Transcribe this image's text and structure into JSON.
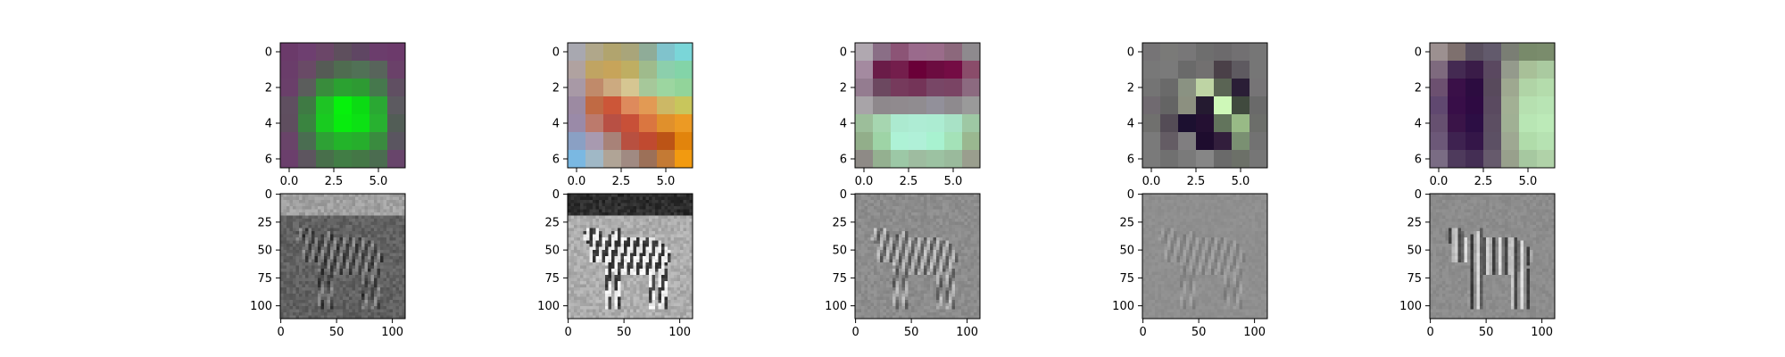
{
  "chart_data": {
    "type": "heatmap",
    "description_panels": "2x5 grid of image subplots (matplotlib imshow)",
    "filters": [
      {
        "xticks": [
          0.0,
          2.5,
          5.0
        ],
        "xtick_labels": [
          "0.0",
          "2.5",
          "5.0"
        ],
        "yticks": [
          0,
          2,
          4,
          6
        ],
        "ytick_labels": [
          "0",
          "2",
          "4",
          "6"
        ],
        "xlim": [
          -0.5,
          6.5
        ],
        "ylim": [
          6.5,
          -0.5
        ],
        "pixels": [
          [
            "#6b3a6a",
            "#6e3f70",
            "#6b4668",
            "#5e4f5d",
            "#5f4663",
            "#6b3d6c",
            "#6c3a6b"
          ],
          [
            "#6a3d6a",
            "#694a66",
            "#555b55",
            "#4f6c50",
            "#517156",
            "#58645b",
            "#6a4169"
          ],
          [
            "#6a3f6a",
            "#5b5d5c",
            "#398c3c",
            "#2ba131",
            "#2e9a33",
            "#46784d",
            "#604f62"
          ],
          [
            "#5f4f60",
            "#3f7a44",
            "#1ec424",
            "#06f10c",
            "#0bdb13",
            "#2aa833",
            "#5c5a60"
          ],
          [
            "#5f4e5f",
            "#3a8440",
            "#19cb20",
            "#08ec0e",
            "#0ce114",
            "#28b130",
            "#525d56"
          ],
          [
            "#694469",
            "#4a6d51",
            "#2ea135",
            "#23b42a",
            "#26ae2c",
            "#3a8b3f",
            "#5a5560"
          ],
          [
            "#6b3f6c",
            "#5d555f",
            "#486f4b",
            "#417d45",
            "#447746",
            "#4b6c50",
            "#68456b"
          ]
        ]
      },
      {
        "xticks": [
          0.0,
          2.5,
          5.0
        ],
        "xtick_labels": [
          "0.0",
          "2.5",
          "5.0"
        ],
        "yticks": [
          0,
          2,
          4,
          6
        ],
        "ytick_labels": [
          "0",
          "2",
          "4",
          "6"
        ],
        "xlim": [
          -0.5,
          6.5
        ],
        "ylim": [
          6.5,
          -0.5
        ],
        "pixels": [
          [
            "#a8a8b0",
            "#b0a78a",
            "#b1a46e",
            "#a9a57a",
            "#8fac98",
            "#80c3cc",
            "#7ad6d8"
          ],
          [
            "#b0a2a0",
            "#c0a462",
            "#c7a45a",
            "#bfae62",
            "#9fbb8c",
            "#8ccfac",
            "#83d4a8"
          ],
          [
            "#a899a6",
            "#c08a6a",
            "#ccaa80",
            "#d6c692",
            "#a6c89a",
            "#9cd6a0",
            "#92d49a"
          ],
          [
            "#9c8aa2",
            "#c06a44",
            "#cc5638",
            "#de8a5c",
            "#e29a54",
            "#ccb866",
            "#c8c65c"
          ],
          [
            "#9a8aa8",
            "#bc7a6c",
            "#b85044",
            "#c85038",
            "#da7640",
            "#e0902c",
            "#ec9a24"
          ],
          [
            "#8aa0c4",
            "#a89ab0",
            "#a88278",
            "#b85040",
            "#c04a30",
            "#bc5416",
            "#e2840c"
          ],
          [
            "#7ab8e2",
            "#a0b8c6",
            "#b0a496",
            "#a08a82",
            "#9c7058",
            "#c47a34",
            "#f29a10"
          ]
        ]
      },
      {
        "xticks": [
          0.0,
          2.5,
          5.0
        ],
        "xtick_labels": [
          "0.0",
          "2.5",
          "5.0"
        ],
        "yticks": [
          0,
          2,
          4,
          6
        ],
        "ytick_labels": [
          "0",
          "2",
          "4",
          "6"
        ],
        "xlim": [
          -0.5,
          6.5
        ],
        "ylim": [
          6.5,
          -0.5
        ],
        "pixels": [
          [
            "#b0a8b0",
            "#8a6e86",
            "#8c5476",
            "#9a6a8c",
            "#9a6c8a",
            "#8c687c",
            "#8e8a8e"
          ],
          [
            "#a48aa0",
            "#6a1c48",
            "#741e4c",
            "#6a0038",
            "#6c0c40",
            "#740c44",
            "#8a4c6a"
          ],
          [
            "#947c90",
            "#6c4860",
            "#763a5c",
            "#743458",
            "#784666",
            "#7a4464",
            "#8c6a80"
          ],
          [
            "#a8a4a8",
            "#8e888c",
            "#908a8e",
            "#908c90",
            "#92909a",
            "#8e8a8e",
            "#9a9a9a"
          ],
          [
            "#9cbe9a",
            "#a6d6b0",
            "#acead0",
            "#aeecd4",
            "#acecd2",
            "#a8e2c6",
            "#9ec8a4"
          ],
          [
            "#92ae8a",
            "#9ed4a6",
            "#aef2d6",
            "#b0f0d8",
            "#a8f2d0",
            "#a4e2b8",
            "#9ab890"
          ],
          [
            "#8e8a86",
            "#94b090",
            "#9cc8a6",
            "#9ebca0",
            "#9cc2a2",
            "#9aba9c",
            "#9a9e8e"
          ]
        ]
      },
      {
        "xticks": [
          0.0,
          2.5,
          5.0
        ],
        "xtick_labels": [
          "0.0",
          "2.5",
          "5.0"
        ],
        "yticks": [
          0,
          2,
          4,
          6
        ],
        "ytick_labels": [
          "0",
          "2",
          "4",
          "6"
        ],
        "xlim": [
          -0.5,
          6.5
        ],
        "ylim": [
          6.5,
          -0.5
        ],
        "pixels": [
          [
            "#767476",
            "#7a7a78",
            "#787778",
            "#6e6e6e",
            "#6c6a6c",
            "#727072",
            "#767676"
          ],
          [
            "#787878",
            "#7a7a7a",
            "#6a6a6a",
            "#727070",
            "#4a4048",
            "#5e5a60",
            "#767676"
          ],
          [
            "#747474",
            "#6a6a6a",
            "#8a9282",
            "#bed4a4",
            "#5a6454",
            "#2a1e36",
            "#767476"
          ],
          [
            "#706a70",
            "#646464",
            "#8c9080",
            "#241a30",
            "#cef8b8",
            "#404a3e",
            "#6a6a6a"
          ],
          [
            "#70706e",
            "#544c56",
            "#1c1030",
            "#241032",
            "#62745c",
            "#98ba86",
            "#6c6e6a"
          ],
          [
            "#7a7a7a",
            "#645c64",
            "#807e80",
            "#1e0c2e",
            "#321e3c",
            "#7a9072",
            "#727272"
          ],
          [
            "#7a7a7a",
            "#707070",
            "#7a7a7a",
            "#868686",
            "#6a6a6a",
            "#6c7068",
            "#767676"
          ]
        ]
      },
      {
        "xticks": [
          0.0,
          2.5,
          5.0
        ],
        "xtick_labels": [
          "0.0",
          "2.5",
          "5.0"
        ],
        "yticks": [
          0,
          2,
          4,
          6
        ],
        "ytick_labels": [
          "0",
          "2",
          "4",
          "6"
        ],
        "xlim": [
          -0.5,
          6.5
        ],
        "ylim": [
          6.5,
          -0.5
        ],
        "pixels": [
          [
            "#9c9090",
            "#7e706e",
            "#5a5060",
            "#625a6c",
            "#7a7e74",
            "#788a6a",
            "#7a8c6c"
          ],
          [
            "#7e6a7e",
            "#442a52",
            "#3a1c48",
            "#5a4860",
            "#949a8c",
            "#a8c098",
            "#aacaa0"
          ],
          [
            "#6c5070",
            "#3a1048",
            "#2c0c40",
            "#584a5c",
            "#9ea890",
            "#b0d4a6",
            "#b4dcac"
          ],
          [
            "#604870",
            "#380e48",
            "#2e0a42",
            "#5a4a60",
            "#a2b094",
            "#b6e0b0",
            "#b8e4b4"
          ],
          [
            "#665070",
            "#3a1448",
            "#2c0e44",
            "#5c4e62",
            "#a0b094",
            "#b8e6b4",
            "#bceab8"
          ],
          [
            "#6c5878",
            "#3e2250",
            "#341648",
            "#5c5064",
            "#9ea892",
            "#b0dcaa",
            "#b6e2b2"
          ],
          [
            "#7a6c84",
            "#4e3a5c",
            "#442e54",
            "#665a6c",
            "#98a08c",
            "#a6c8a0",
            "#b0d2a8"
          ]
        ]
      }
    ],
    "responses": [
      {
        "xticks": [
          0,
          50,
          100
        ],
        "xtick_labels": [
          "0",
          "50",
          "100"
        ],
        "yticks": [
          0,
          25,
          50,
          75,
          100
        ],
        "ytick_labels": [
          "0",
          "25",
          "50",
          "75",
          "100"
        ],
        "xlim": [
          -0.5,
          111.5
        ],
        "ylim": [
          111.5,
          -0.5
        ],
        "rendering": "grayscale",
        "texture": "dark-noisy",
        "base_gray": 0.38,
        "contrast": 0.28
      },
      {
        "xticks": [
          0,
          50,
          100
        ],
        "xtick_labels": [
          "0",
          "50",
          "100"
        ],
        "yticks": [
          0,
          25,
          50,
          75,
          100
        ],
        "ytick_labels": [
          "0",
          "25",
          "50",
          "75",
          "100"
        ],
        "xlim": [
          -0.5,
          111.5
        ],
        "ylim": [
          111.5,
          -0.5
        ],
        "rendering": "grayscale",
        "texture": "bright-photo",
        "base_gray": 0.68,
        "contrast": 0.4
      },
      {
        "xticks": [
          0,
          50,
          100
        ],
        "xtick_labels": [
          "0",
          "50",
          "100"
        ],
        "yticks": [
          0,
          25,
          50,
          75,
          100
        ],
        "ytick_labels": [
          "0",
          "25",
          "50",
          "75",
          "100"
        ],
        "xlim": [
          -0.5,
          111.5
        ],
        "ylim": [
          111.5,
          -0.5
        ],
        "rendering": "grayscale",
        "texture": "edge-emboss",
        "base_gray": 0.55,
        "contrast": 0.3
      },
      {
        "xticks": [
          0,
          50,
          100
        ],
        "xtick_labels": [
          "0",
          "50",
          "100"
        ],
        "yticks": [
          0,
          25,
          50,
          75,
          100
        ],
        "ytick_labels": [
          "0",
          "25",
          "50",
          "75",
          "100"
        ],
        "xlim": [
          -0.5,
          111.5
        ],
        "ylim": [
          111.5,
          -0.5
        ],
        "rendering": "grayscale",
        "texture": "faint-edges",
        "base_gray": 0.56,
        "contrast": 0.1
      },
      {
        "xticks": [
          0,
          50,
          100
        ],
        "xtick_labels": [
          "0",
          "50",
          "100"
        ],
        "yticks": [
          0,
          25,
          50,
          75,
          100
        ],
        "ytick_labels": [
          "0",
          "25",
          "50",
          "75",
          "100"
        ],
        "xlim": [
          -0.5,
          111.5
        ],
        "ylim": [
          111.5,
          -0.5
        ],
        "rendering": "grayscale",
        "texture": "vertical-stripes",
        "base_gray": 0.55,
        "contrast": 0.35
      }
    ]
  }
}
